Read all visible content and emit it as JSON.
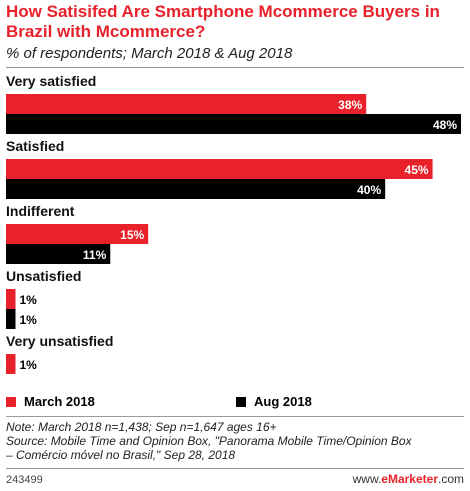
{
  "header": {
    "title": "How Satisifed Are Smartphone Mcommerce Buyers in Brazil with Mcommerce?",
    "subtitle": "% of respondents; March 2018 & Aug 2018"
  },
  "chart_data": {
    "type": "bar",
    "orientation": "horizontal",
    "categories": [
      "Very satisfied",
      "Satisfied",
      "Indifferent",
      "Unsatisfied",
      "Very unsatisfied"
    ],
    "series": [
      {
        "name": "March 2018",
        "color": "#e8212b",
        "values": [
          38,
          45,
          15,
          1,
          1
        ],
        "labels": [
          "38%",
          "45%",
          "15%",
          "1%",
          "1%"
        ]
      },
      {
        "name": "Aug 2018",
        "color": "#000000",
        "values": [
          48,
          40,
          11,
          1,
          null
        ],
        "labels": [
          "48%",
          "40%",
          "11%",
          "1%",
          ""
        ]
      }
    ],
    "unit": "%",
    "xlim": [
      0,
      48
    ],
    "grid": false,
    "legend": "bottom"
  },
  "legend": {
    "items": [
      {
        "label": "March 2018",
        "color": "#e8212b"
      },
      {
        "label": "Aug 2018",
        "color": "#000000"
      }
    ]
  },
  "notes": {
    "line1": "Note: March 2018 n=1,438; Sep n=1,647 ages 16+",
    "line2": "Source: Mobile Time and Opinion Box, \"Panorama Mobile Time/Opinion Box",
    "line3": "– Comércio móvel no Brasil,\" Sep 28, 2018"
  },
  "footer": {
    "chart_id": "243499",
    "brand_prefix": "www.",
    "brand_name": "eMarketer",
    "brand_suffix": ".com"
  }
}
